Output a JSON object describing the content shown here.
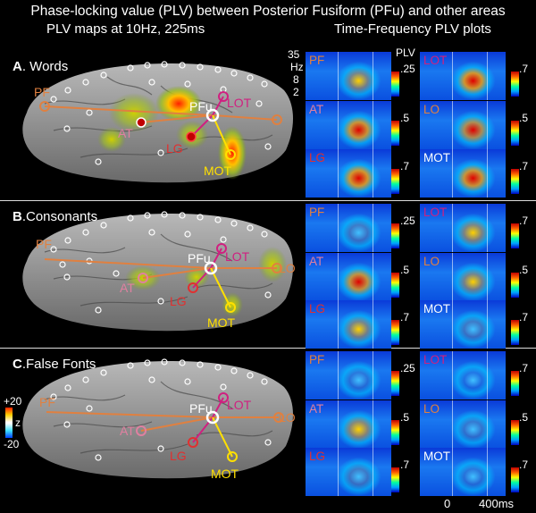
{
  "title": "Phase-locking value (PLV) between Posterior Fusiform (PFu) and other areas",
  "subtitle_left": "PLV maps at 10Hz, 225ms",
  "subtitle_right": "Time-Frequency PLV plots",
  "colors": {
    "pf": "#e08040",
    "magenta": "#d02080",
    "red": "#e03030",
    "yellow": "#ffe000",
    "white": "#ffffff",
    "pink": "#e080a0"
  },
  "freq_axis": {
    "ticks": [
      "35",
      "8",
      "2"
    ],
    "unit": "Hz",
    "plv_label": "PLV"
  },
  "time_axis": {
    "start": "0",
    "end": "400ms"
  },
  "z_scale": {
    "top": "+20",
    "label": "z",
    "bottom": "-20"
  },
  "panels": [
    {
      "letter": "A",
      "name": ". Words",
      "brain_labels": {
        "pf": "PF",
        "pfu": "PFu",
        "lot": "LOT",
        "at": "AT",
        "lg": "LG",
        "mot": "MOT",
        "lo": ""
      },
      "tf_plots": [
        {
          "label": "PF",
          "scale": ".25"
        },
        {
          "label": "LOT",
          "scale": ".7"
        },
        {
          "label": "AT",
          "scale": ".5"
        },
        {
          "label": "LO",
          "scale": ".5"
        },
        {
          "label": "LG",
          "scale": ".7"
        },
        {
          "label": "MOT",
          "scale": ".7"
        }
      ]
    },
    {
      "letter": "B",
      "name": ".Consonants",
      "brain_labels": {
        "pf": "PF",
        "pfu": "PFu",
        "lot": "LOT",
        "at": "AT",
        "lg": "LG",
        "mot": "MOT",
        "lo": "LO"
      },
      "tf_plots": [
        {
          "label": "PF",
          "scale": ".25"
        },
        {
          "label": "LOT",
          "scale": ".7"
        },
        {
          "label": "AT",
          "scale": ".5"
        },
        {
          "label": "LO",
          "scale": ".5"
        },
        {
          "label": "LG",
          "scale": ".7"
        },
        {
          "label": "MOT",
          "scale": ".7"
        }
      ]
    },
    {
      "letter": "C",
      "name": ".False Fonts",
      "brain_labels": {
        "pf": "PF",
        "pfu": "PFu",
        "lot": "LOT",
        "at": "AT",
        "lg": "LG",
        "mot": "MOT",
        "lo": "LO"
      },
      "tf_plots": [
        {
          "label": "PF",
          "scale": ".25"
        },
        {
          "label": "LOT",
          "scale": ".7"
        },
        {
          "label": "AT",
          "scale": ".5"
        },
        {
          "label": "LO",
          "scale": ".5"
        },
        {
          "label": "LG",
          "scale": ".7"
        },
        {
          "label": "MOT",
          "scale": ".7"
        }
      ]
    }
  ]
}
